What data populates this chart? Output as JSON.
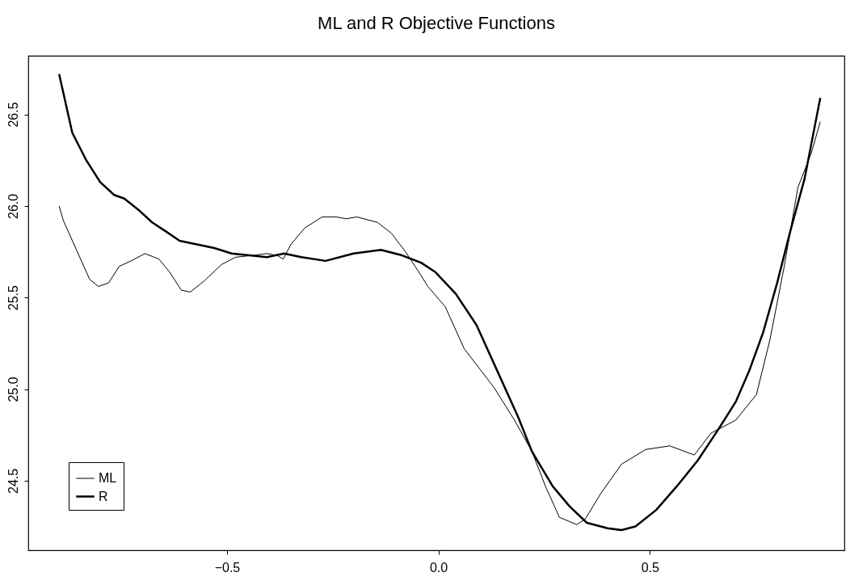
{
  "chart_data": {
    "type": "line",
    "title": "ML and R Objective Functions",
    "xlim": [
      -0.97,
      0.96
    ],
    "xticks": [
      {
        "value": -0.5,
        "label": "−0.5"
      },
      {
        "value": 0,
        "label": "0.0"
      },
      {
        "value": 0.5,
        "label": "0.5"
      }
    ],
    "ylim": [
      24.12,
      26.82
    ],
    "yticks": [
      24.5,
      {
        "value": 25,
        "label": "25.0"
      },
      25.5,
      {
        "value": 26,
        "label": "26.0"
      },
      26.5
    ],
    "grid": false,
    "legend": "bottom left",
    "line_style": "solid",
    "marker": "none",
    "series": [
      {
        "name": "ML",
        "color": "#000000",
        "x": [
          -0.897,
          -0.887,
          -0.858,
          -0.825,
          -0.804,
          -0.78,
          -0.755,
          -0.727,
          -0.694,
          -0.661,
          -0.636,
          -0.608,
          -0.587,
          -0.554,
          -0.513,
          -0.48,
          -0.439,
          -0.406,
          -0.382,
          -0.367,
          -0.349,
          -0.316,
          -0.275,
          -0.242,
          -0.218,
          -0.193,
          -0.144,
          -0.111,
          -0.078,
          -0.041,
          -0.025,
          0.016,
          0.061,
          0.131,
          0.18,
          0.221,
          0.253,
          0.286,
          0.327,
          0.347,
          0.384,
          0.433,
          0.49,
          0.547,
          0.605,
          0.645,
          0.703,
          0.752,
          0.784,
          0.817,
          0.85,
          0.882,
          0.903
        ],
        "values": [
          26.0,
          25.92,
          25.77,
          25.6,
          25.56,
          25.58,
          25.67,
          25.7,
          25.74,
          25.71,
          25.64,
          25.54,
          25.53,
          25.59,
          25.68,
          25.72,
          25.73,
          25.74,
          25.73,
          25.71,
          25.79,
          25.88,
          25.94,
          25.94,
          25.93,
          25.94,
          25.91,
          25.85,
          25.75,
          25.62,
          25.56,
          25.45,
          25.22,
          25.01,
          24.83,
          24.66,
          24.47,
          24.3,
          24.26,
          24.29,
          24.43,
          24.59,
          24.67,
          24.69,
          24.64,
          24.76,
          24.83,
          24.97,
          25.27,
          25.66,
          26.1,
          26.29,
          26.46
        ]
      },
      {
        "name": "R",
        "color": "#000000",
        "x": [
          -0.897,
          -0.866,
          -0.833,
          -0.8,
          -0.767,
          -0.743,
          -0.71,
          -0.677,
          -0.644,
          -0.612,
          -0.571,
          -0.53,
          -0.489,
          -0.447,
          -0.406,
          -0.365,
          -0.324,
          -0.267,
          -0.201,
          -0.136,
          -0.086,
          -0.041,
          -0.008,
          0.041,
          0.09,
          0.139,
          0.188,
          0.221,
          0.27,
          0.31,
          0.351,
          0.4,
          0.433,
          0.466,
          0.515,
          0.564,
          0.613,
          0.662,
          0.703,
          0.735,
          0.768,
          0.801,
          0.833,
          0.866,
          0.903
        ],
        "values": [
          26.72,
          26.4,
          26.25,
          26.13,
          26.06,
          26.04,
          25.98,
          25.91,
          25.86,
          25.81,
          25.79,
          25.77,
          25.74,
          25.73,
          25.72,
          25.74,
          25.72,
          25.7,
          25.74,
          25.76,
          25.73,
          25.69,
          25.64,
          25.52,
          25.35,
          25.1,
          24.85,
          24.66,
          24.47,
          24.36,
          24.27,
          24.24,
          24.23,
          24.25,
          24.34,
          24.47,
          24.61,
          24.78,
          24.93,
          25.1,
          25.31,
          25.58,
          25.87,
          26.15,
          26.59
        ]
      }
    ]
  }
}
